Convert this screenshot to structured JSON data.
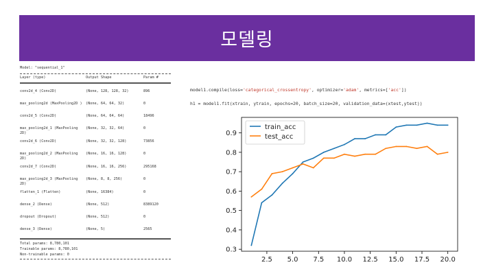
{
  "slide": {
    "title": "모델링"
  },
  "summary": {
    "model_line": "Model: \"sequential_1\"",
    "headers": [
      "Layer (type)",
      "Output Shape",
      "Param #"
    ],
    "rows": [
      [
        "conv2d_4 (Conv2D)",
        "(None, 128, 128, 32)",
        "896"
      ],
      [
        "max_pooling2d (MaxPooling2D )",
        "(None, 64, 64, 32)",
        "0"
      ],
      [
        "conv2d_5 (Conv2D)",
        "(None, 64, 64, 64)",
        "18496"
      ],
      [
        "max_pooling2d_1 (MaxPooling 2D)",
        "(None, 32, 32, 64)",
        "0"
      ],
      [
        "conv2d_6 (Conv2D)",
        "(None, 32, 32, 128)",
        "73856"
      ],
      [
        "max_pooling2d_2 (MaxPooling 2D)",
        "(None, 16, 16, 128)",
        "0"
      ],
      [
        "conv2d_7 (Conv2D)",
        "(None, 16, 16, 256)",
        "295168"
      ],
      [
        "max_pooling2d_3 (MaxPooling 2D)",
        "(None, 8, 8, 256)",
        "0"
      ],
      [
        "flatten_1 (Flatten)",
        "(None, 16384)",
        "0"
      ],
      [
        "dense_2 (Dense)",
        "(None, 512)",
        "8389120"
      ],
      [
        "dropout (Dropout)",
        "(None, 512)",
        "0"
      ],
      [
        "dense_3 (Dense)",
        "(None, 5)",
        "2565"
      ]
    ],
    "total_params": "Total params: 8,780,101",
    "trainable_params": "Trainable params: 8,780,101",
    "non_trainable_params": "Non-trainable params: 0"
  },
  "code": {
    "line1_prefix": "model1.compile(loss=",
    "line1_loss": "'categorical_crossentropy'",
    "line1_mid": ", optimizer=",
    "line1_opt": "'adam'",
    "line1_mid2": ", metrics=[",
    "line1_metric": "'acc'",
    "line1_end": "])",
    "line2": "h1 = model1.fit(xtrain, ytrain, epochs=20, batch_size=20, validation_data=(xtest,ytest))"
  },
  "chart_data": {
    "type": "line",
    "x": [
      1,
      2,
      3,
      4,
      5,
      6,
      7,
      8,
      9,
      10,
      11,
      12,
      13,
      14,
      15,
      16,
      17,
      18,
      19,
      20
    ],
    "series": [
      {
        "name": "train_acc",
        "color": "#1f77b4",
        "values": [
          0.32,
          0.54,
          0.58,
          0.64,
          0.69,
          0.75,
          0.77,
          0.8,
          0.82,
          0.84,
          0.87,
          0.87,
          0.89,
          0.89,
          0.93,
          0.94,
          0.94,
          0.95,
          0.94,
          0.94
        ]
      },
      {
        "name": "test_acc",
        "color": "#ff7f0e",
        "values": [
          0.57,
          0.61,
          0.69,
          0.7,
          0.72,
          0.74,
          0.72,
          0.77,
          0.77,
          0.79,
          0.78,
          0.79,
          0.79,
          0.82,
          0.83,
          0.83,
          0.82,
          0.83,
          0.79,
          0.8
        ]
      }
    ],
    "xlim": [
      0.05,
      20.95
    ],
    "ylim": [
      0.29,
      0.98
    ],
    "xticks": [
      "2.5",
      "5.0",
      "7.5",
      "10.0",
      "12.5",
      "15.0",
      "17.5",
      "20.0"
    ],
    "xtick_values": [
      2.5,
      5.0,
      7.5,
      10.0,
      12.5,
      15.0,
      17.5,
      20.0
    ],
    "yticks": [
      "0.3",
      "0.4",
      "0.5",
      "0.6",
      "0.7",
      "0.8",
      "0.9"
    ],
    "ytick_values": [
      0.3,
      0.4,
      0.5,
      0.6,
      0.7,
      0.8,
      0.9
    ],
    "legend_position": "top-left",
    "grid": false
  }
}
